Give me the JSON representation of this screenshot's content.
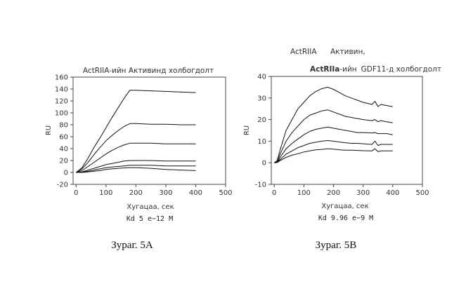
{
  "figure_a": {
    "caption": "Зураг. 5A",
    "title": "ActRIIA-ийн Активинд холбогдолт",
    "kd_text": "Kd 5 e−12 M"
  },
  "figure_b": {
    "caption": "Зураг. 5B",
    "header_left": "ActRIIA",
    "header_right": "Активин,",
    "title_part1": "ActRIIa",
    "title_part2": "-ийн",
    "title_part3": "GDF11",
    "title_part4": "-д холбогдолт",
    "kd_text": "Kd 9.96 e−9 M"
  },
  "chart_data": [
    {
      "type": "line",
      "title": "ActRIIA-ийн Активинд холбогдолт",
      "xlabel": "Хугацаа, сек",
      "ylabel": "RU",
      "xlim": [
        -10,
        500
      ],
      "ylim": [
        -20,
        160
      ],
      "xticks": [
        0,
        100,
        200,
        300,
        400,
        500
      ],
      "yticks": [
        -20,
        0,
        20,
        40,
        60,
        80,
        100,
        120,
        140,
        160
      ],
      "grid": false,
      "series": [
        {
          "x": [
            0,
            20,
            40,
            60,
            80,
            100,
            120,
            140,
            160,
            180,
            200,
            250,
            300,
            350,
            400
          ],
          "y": [
            0,
            8,
            24,
            42,
            58,
            75,
            92,
            108,
            124,
            138,
            138,
            137,
            136,
            135,
            134
          ]
        },
        {
          "x": [
            0,
            20,
            40,
            60,
            80,
            100,
            120,
            140,
            160,
            180,
            200,
            250,
            300,
            350,
            400
          ],
          "y": [
            0,
            6,
            17,
            30,
            42,
            53,
            62,
            70,
            77,
            82,
            82,
            81,
            81,
            80,
            80
          ]
        },
        {
          "x": [
            0,
            20,
            40,
            60,
            80,
            100,
            120,
            140,
            160,
            180,
            200,
            250,
            300,
            350,
            400
          ],
          "y": [
            0,
            3,
            10,
            17,
            24,
            31,
            37,
            42,
            46,
            49,
            49,
            49,
            48,
            48,
            48
          ]
        },
        {
          "x": [
            0,
            20,
            40,
            60,
            80,
            100,
            120,
            140,
            160,
            180,
            200,
            250,
            300,
            350,
            400
          ],
          "y": [
            0,
            1,
            4,
            7,
            10,
            13,
            15,
            17,
            19,
            20,
            20,
            20,
            19,
            19,
            19
          ]
        },
        {
          "x": [
            0,
            20,
            40,
            60,
            80,
            100,
            120,
            140,
            160,
            180,
            200,
            250,
            300,
            350,
            400
          ],
          "y": [
            0,
            0.5,
            2,
            4,
            6,
            8,
            9,
            10,
            11,
            12,
            12,
            12,
            11,
            11,
            11
          ]
        },
        {
          "x": [
            0,
            20,
            40,
            60,
            80,
            100,
            120,
            140,
            160,
            180,
            200,
            250,
            300,
            350,
            400
          ],
          "y": [
            0,
            0,
            1,
            2,
            3,
            5,
            6,
            7,
            7.5,
            8,
            8,
            7,
            5,
            4,
            3
          ]
        }
      ]
    },
    {
      "type": "line",
      "title": "ActRIIa-ийн GDF11-д холбогдолт",
      "xlabel": "Хугацаа, сек",
      "ylabel": "RU",
      "xlim": [
        -10,
        500
      ],
      "ylim": [
        -10,
        40
      ],
      "xticks": [
        0,
        100,
        200,
        300,
        400,
        500
      ],
      "yticks": [
        -10,
        0,
        10,
        20,
        30,
        40
      ],
      "grid": false,
      "series": [
        {
          "x": [
            0,
            10,
            20,
            40,
            60,
            80,
            100,
            120,
            140,
            160,
            180,
            200,
            220,
            240,
            260,
            280,
            300,
            330,
            340,
            350,
            360,
            380,
            400
          ],
          "y": [
            0,
            1,
            6,
            15,
            20,
            25,
            28,
            31,
            33,
            34.3,
            35,
            34,
            32.5,
            31,
            30,
            29,
            28,
            27,
            28.5,
            26,
            27,
            26.5,
            26
          ]
        },
        {
          "x": [
            0,
            10,
            20,
            40,
            60,
            80,
            100,
            120,
            140,
            160,
            180,
            200,
            220,
            240,
            260,
            280,
            300,
            330,
            340,
            350,
            360,
            380,
            400
          ],
          "y": [
            0,
            0.5,
            4,
            10,
            14,
            17,
            20,
            22,
            23,
            24,
            24.5,
            23.5,
            22.5,
            21.5,
            21,
            20.5,
            20,
            19.5,
            20,
            19,
            19.5,
            19,
            18.5
          ]
        },
        {
          "x": [
            0,
            10,
            20,
            40,
            60,
            80,
            100,
            120,
            140,
            160,
            180,
            200,
            220,
            240,
            260,
            280,
            300,
            330,
            340,
            350,
            360,
            380,
            400
          ],
          "y": [
            0,
            0.3,
            2.5,
            6.5,
            9,
            11,
            13,
            14.5,
            15.5,
            16,
            16.5,
            16,
            15.5,
            15,
            14.5,
            14,
            14,
            13.8,
            14,
            13.5,
            13.5,
            13.5,
            13
          ]
        },
        {
          "x": [
            0,
            10,
            20,
            40,
            60,
            80,
            100,
            120,
            140,
            160,
            180,
            200,
            220,
            240,
            260,
            280,
            300,
            330,
            340,
            350,
            360,
            380,
            400
          ],
          "y": [
            0,
            0.2,
            1.5,
            4,
            5.5,
            7,
            8,
            9,
            9.5,
            10,
            10.3,
            10,
            9.6,
            9.3,
            9,
            9,
            8.8,
            8.5,
            10,
            8,
            8.5,
            8.5,
            8.5
          ]
        },
        {
          "x": [
            0,
            10,
            20,
            40,
            60,
            80,
            100,
            120,
            140,
            160,
            180,
            200,
            220,
            240,
            260,
            280,
            300,
            330,
            340,
            350,
            360,
            380,
            400
          ],
          "y": [
            0,
            0.1,
            1,
            2.5,
            3.5,
            4.2,
            5,
            5.5,
            6,
            6.2,
            6.5,
            6.3,
            6,
            5.8,
            5.8,
            5.7,
            5.6,
            5.5,
            6.5,
            5.2,
            5.5,
            5.5,
            5.5
          ]
        }
      ]
    }
  ]
}
